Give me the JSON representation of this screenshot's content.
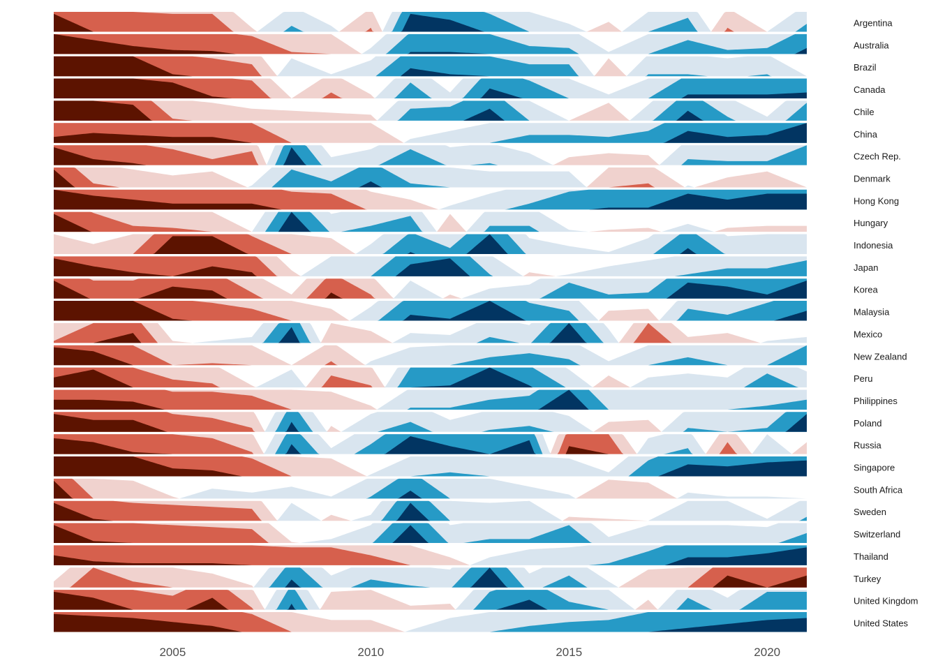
{
  "chart_data": {
    "type": "area",
    "subtype": "horizon",
    "title": "",
    "xlabel": "",
    "ylabel": "",
    "x": [
      2002,
      2003,
      2004,
      2005,
      2006,
      2007,
      2008,
      2009,
      2010,
      2011,
      2012,
      2013,
      2014,
      2015,
      2016,
      2017,
      2018,
      2019,
      2020,
      2021
    ],
    "xlim": [
      2002,
      2021
    ],
    "x_ticks": [
      "2005",
      "2010",
      "2015",
      "2020"
    ],
    "band_size": 1,
    "bands": 3,
    "colors": {
      "neg": [
        "#f0d2ce",
        "#d6604d",
        "#5c1300"
      ],
      "pos": [
        "#d9e5ef",
        "#269ac6",
        "#023562"
      ]
    },
    "series": [
      {
        "name": "Argentina",
        "values": [
          -2.9,
          -2.0,
          -2.0,
          -1.9,
          -1.9,
          -0.2,
          1.3,
          0.3,
          -1.2,
          2.9,
          2.6,
          1.9,
          1.0,
          0.4,
          -0.5,
          1.0,
          1.7,
          -1.2,
          0.0,
          1.4
        ]
      },
      {
        "name": "Australia",
        "values": [
          -3,
          -2.7,
          -2.4,
          -2.2,
          -2.15,
          -1.9,
          -1.1,
          -1.0,
          0.3,
          2.1,
          2.1,
          2.0,
          1.4,
          1.3,
          0.1,
          1.0,
          1.7,
          1.2,
          1.3,
          2.3
        ]
      },
      {
        "name": "Brazil",
        "values": [
          -3,
          -3,
          -3,
          -2.1,
          -1.9,
          -1.6,
          0.9,
          0.1,
          0.8,
          2.4,
          2.1,
          2.0,
          1.6,
          1.6,
          -0.9,
          1.1,
          1.1,
          0.9,
          1.1,
          0.0
        ]
      },
      {
        "name": "Canada",
        "values": [
          -3,
          -3,
          -3,
          -2.8,
          -2.1,
          -1.9,
          0,
          -1.3,
          -0.2,
          1.8,
          0.3,
          2.5,
          1.9,
          1.0,
          0.2,
          1.0,
          2.2,
          2.2,
          2.2,
          2.3
        ]
      },
      {
        "name": "Chile",
        "values": [
          -3,
          -3,
          -2.8,
          -1.1,
          -0.9,
          -0.6,
          -0.5,
          -0.4,
          -0.3,
          1.6,
          1.7,
          2.6,
          1.0,
          0,
          -0.9,
          0.8,
          2.5,
          1.2,
          0.2,
          1.9
        ]
      },
      {
        "name": "China",
        "values": [
          -2.3,
          -2.5,
          -2.4,
          -2.3,
          -2.3,
          -2.0,
          -1.0,
          -1.0,
          -1.0,
          0.2,
          0.6,
          1.0,
          1.4,
          1.4,
          1.3,
          1.6,
          2.6,
          2.3,
          2.4,
          3.0
        ]
      },
      {
        "name": "Czech Rep.",
        "values": [
          -2.9,
          -2.3,
          -2.1,
          -1.8,
          -1.3,
          -1.7,
          2.9,
          0.4,
          0.8,
          1.8,
          0.9,
          1.1,
          0.6,
          -0.4,
          -0.6,
          -0.5,
          1.3,
          1.2,
          1.2,
          2.0
        ]
      },
      {
        "name": "Denmark",
        "values": [
          -2.9,
          -1.2,
          -0.9,
          -0.6,
          -0.8,
          0.1,
          1.9,
          1.3,
          2.3,
          1.2,
          1.0,
          0.8,
          0.8,
          0.8,
          -1.0,
          -1.2,
          0.1,
          -0.5,
          -0.8,
          0.0
        ]
      },
      {
        "name": "Hong Kong",
        "values": [
          -3,
          -2.7,
          -2.5,
          -2.3,
          -2.3,
          -2.3,
          -1.9,
          -1.8,
          -0.9,
          -0.5,
          0.2,
          0.8,
          1.3,
          1.9,
          2.1,
          2.1,
          2.8,
          2.5,
          2.8,
          2.8
        ]
      },
      {
        "name": "Hungary",
        "values": [
          -2.9,
          -1.95,
          -1.3,
          -1.2,
          -1.0,
          0,
          3.0,
          0.9,
          1.3,
          1.8,
          -0.9,
          1.3,
          1.3,
          0.1,
          -0.1,
          -0.2,
          0.4,
          -0.2,
          -0.3,
          -0.3
        ]
      },
      {
        "name": "Indonesia",
        "values": [
          -1.0,
          -0.5,
          -1.0,
          -2.9,
          -2.9,
          -1.9,
          -1.0,
          -0.8,
          0.5,
          2.1,
          1.3,
          3.0,
          0.8,
          0.4,
          0.1,
          0.8,
          2.3,
          0.9,
          1.0,
          1.0
        ]
      },
      {
        "name": "Japan",
        "values": [
          -2.9,
          -2.5,
          -2.2,
          -2.0,
          -2.5,
          -2.2,
          -0.3,
          1.0,
          1.0,
          2.6,
          2.9,
          1.1,
          -0.2,
          0.1,
          0.5,
          0.8,
          1.1,
          1.4,
          1.4,
          1.8
        ]
      },
      {
        "name": "Korea",
        "values": [
          -2.9,
          -1.9,
          -1.9,
          -2.6,
          -2.4,
          -1.3,
          -0.2,
          -2.3,
          -1.2,
          0.9,
          -0.2,
          0.5,
          0.7,
          1.8,
          1.2,
          1.3,
          2.8,
          2.6,
          2.2,
          2.9
        ]
      },
      {
        "name": "Malaysia",
        "values": [
          -3,
          -3,
          -3,
          -2.1,
          -1.9,
          -1.6,
          -1.0,
          -0.6,
          0.7,
          2.3,
          2.1,
          3.0,
          1.9,
          1.5,
          -0.5,
          -0.6,
          1.6,
          1.3,
          1.9,
          2.5
        ]
      },
      {
        "name": "Mexico",
        "values": [
          -1.1,
          -2.0,
          -2.5,
          -0.1,
          0.1,
          0.3,
          2.8,
          -1.0,
          -0.6,
          0.5,
          0.4,
          1.3,
          0.9,
          3.0,
          0.7,
          -2.0,
          -0.3,
          -0.5,
          0.1,
          0.3
        ]
      },
      {
        "name": "New Zealand",
        "values": [
          -2.9,
          -2.7,
          -2.0,
          -1.0,
          -1.1,
          -1.0,
          0,
          -1.2,
          0.2,
          0.9,
          1.0,
          1.4,
          1.6,
          1.3,
          0.2,
          1.0,
          1.4,
          1.0,
          1.0,
          2.0
        ]
      },
      {
        "name": "Peru",
        "values": [
          -2.5,
          -2.9,
          -2.0,
          -1.4,
          -1.2,
          -0.1,
          0.9,
          -1.6,
          -1.1,
          2.0,
          2.1,
          3.0,
          2.1,
          0.9,
          -0.6,
          0.5,
          0.7,
          0.5,
          1.7,
          0.8
        ]
      },
      {
        "name": "Philippines",
        "values": [
          -2.5,
          -2.5,
          -2.4,
          -1.9,
          -1.9,
          -1.7,
          -1.0,
          -0.9,
          -0.2,
          1.1,
          1.1,
          1.5,
          1.7,
          3.0,
          1.0,
          1.0,
          1.0,
          1.0,
          1.2,
          1.5
        ]
      },
      {
        "name": "Poland",
        "values": [
          -2.9,
          -2.6,
          -2.6,
          -1.9,
          -1.7,
          -1.2,
          2.5,
          -0.3,
          0.9,
          1.5,
          0.6,
          1.1,
          1.3,
          0.8,
          -0.5,
          -0.6,
          1.2,
          1.0,
          1.2,
          2.9
        ]
      },
      {
        "name": "Russia",
        "values": [
          -2.8,
          -2.6,
          -2.1,
          -2.0,
          -1.8,
          -1.1,
          2.5,
          0.3,
          1.5,
          2.9,
          2.4,
          2.0,
          2.7,
          -2.4,
          -2.0,
          0.8,
          1.3,
          -1.6,
          1.0,
          -0.6
        ]
      },
      {
        "name": "Singapore",
        "values": [
          -3,
          -3,
          -3,
          -2.4,
          -2.3,
          -1.9,
          -1.0,
          -0.9,
          0.1,
          1.0,
          1.2,
          1.0,
          1.0,
          0.9,
          0.2,
          1.8,
          2.6,
          2.5,
          2.7,
          2.8
        ]
      },
      {
        "name": "South Africa",
        "values": [
          -2.9,
          -1.0,
          -0.9,
          -0.1,
          0.5,
          0.3,
          0.6,
          0.1,
          1.1,
          2.4,
          1.0,
          1.0,
          0.6,
          0.2,
          -0.95,
          -0.8,
          0.3,
          0.1,
          0.1,
          0.0
        ]
      },
      {
        "name": "Sweden",
        "values": [
          -2.9,
          -2.1,
          -1.9,
          -1.8,
          -1.7,
          -1.6,
          0.9,
          -0.3,
          0.3,
          2.9,
          1.0,
          0.9,
          1.0,
          -0.2,
          -0.1,
          0,
          1.0,
          1.0,
          0.1,
          1.2
        ]
      },
      {
        "name": "Switzerland",
        "values": [
          -2.9,
          -2.1,
          -2.0,
          -1.9,
          -1.8,
          -1.7,
          -0.05,
          0.2,
          0.9,
          2.9,
          0.9,
          1.2,
          1.2,
          1.9,
          0.3,
          0.9,
          0.9,
          0.9,
          0.8,
          1.5
        ]
      },
      {
        "name": "Thailand",
        "values": [
          -2.5,
          -2.2,
          -2.1,
          -2.1,
          -2.1,
          -2.0,
          -1.9,
          -1.9,
          -1.5,
          -1.0,
          -0.4,
          0.4,
          0.8,
          0.9,
          1.1,
          1.7,
          2.4,
          2.4,
          2.6,
          2.9
        ]
      },
      {
        "name": "Turkey",
        "values": [
          -0.3,
          -2.0,
          -1.3,
          -1.0,
          -0.7,
          -0.1,
          2.4,
          0.6,
          1.4,
          1.1,
          0.9,
          3.0,
          0.7,
          1.6,
          0.3,
          -0.9,
          -1.0,
          -2.6,
          -2.0,
          -2.6
        ]
      },
      {
        "name": "United Kingdom",
        "values": [
          -2.9,
          -2.6,
          -2.0,
          -1.7,
          -2.6,
          -1.1,
          2.3,
          -0.9,
          -1.0,
          -0.2,
          -0.3,
          1.9,
          2.5,
          1.4,
          1.0,
          -0.5,
          1.6,
          0.6,
          1.9,
          1.9
        ]
      },
      {
        "name": "United States",
        "values": [
          -2.9,
          -2.8,
          -2.7,
          -2.5,
          -2.3,
          -1.9,
          -1.0,
          -0.6,
          -0.6,
          0.1,
          0.7,
          1.0,
          1.3,
          1.5,
          1.6,
          2.0,
          2.2,
          2.4,
          2.6,
          2.7
        ]
      }
    ]
  }
}
